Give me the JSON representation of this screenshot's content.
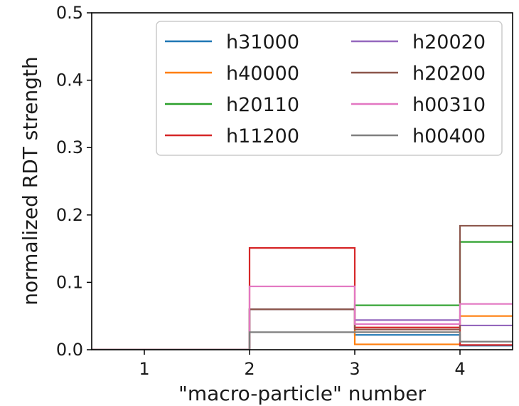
{
  "chart_data": {
    "type": "step",
    "xlabel": "\"macro-particle\" number",
    "ylabel": "normalized RDT strength",
    "xlim": [
      0.5,
      4.5
    ],
    "ylim": [
      0.0,
      0.5
    ],
    "x_ticks": [
      {
        "value": 1,
        "label": "1"
      },
      {
        "value": 2,
        "label": "2"
      },
      {
        "value": 3,
        "label": "3"
      },
      {
        "value": 4,
        "label": "4"
      }
    ],
    "y_ticks": [
      {
        "value": 0.0,
        "label": "0.0"
      },
      {
        "value": 0.1,
        "label": "0.1"
      },
      {
        "value": 0.2,
        "label": "0.2"
      },
      {
        "value": 0.3,
        "label": "0.3"
      },
      {
        "value": 0.4,
        "label": "0.4"
      },
      {
        "value": 0.5,
        "label": "0.5"
      }
    ],
    "bin_edges": [
      0,
      1,
      2,
      3,
      4,
      5
    ],
    "grid": false,
    "legend_position": "top-right",
    "legend_columns": 2,
    "series": [
      {
        "name": "h31000",
        "color": "#1f77b4",
        "values": [
          0.0,
          0.0,
          0.06,
          0.022,
          0.006
        ]
      },
      {
        "name": "h40000",
        "color": "#ff7f0e",
        "values": [
          0.0,
          0.0,
          0.06,
          0.008,
          0.05
        ]
      },
      {
        "name": "h20110",
        "color": "#2ca02c",
        "values": [
          0.0,
          0.0,
          0.06,
          0.066,
          0.16
        ]
      },
      {
        "name": "h11200",
        "color": "#d62728",
        "values": [
          0.0,
          0.0,
          0.151,
          0.033,
          0.007
        ]
      },
      {
        "name": "h20020",
        "color": "#9467bd",
        "values": [
          0.0,
          0.0,
          0.06,
          0.044,
          0.036
        ]
      },
      {
        "name": "h20200",
        "color": "#8c564b",
        "values": [
          0.0,
          0.0,
          0.06,
          0.03,
          0.184
        ]
      },
      {
        "name": "h00310",
        "color": "#e377c2",
        "values": [
          0.0,
          0.0,
          0.094,
          0.038,
          0.068
        ]
      },
      {
        "name": "h00400",
        "color": "#7f7f7f",
        "values": [
          0.0,
          0.0,
          0.026,
          0.026,
          0.012
        ]
      }
    ]
  }
}
